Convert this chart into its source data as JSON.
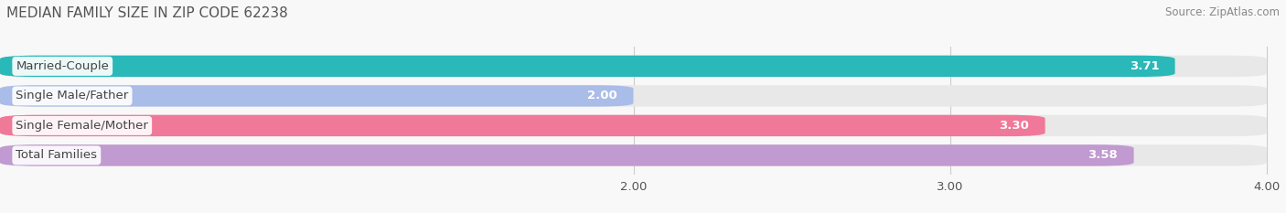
{
  "title": "MEDIAN FAMILY SIZE IN ZIP CODE 62238",
  "source": "Source: ZipAtlas.com",
  "categories": [
    "Married-Couple",
    "Single Male/Father",
    "Single Female/Mother",
    "Total Families"
  ],
  "values": [
    3.71,
    2.0,
    3.3,
    3.58
  ],
  "bar_colors": [
    "#2ab8b8",
    "#aabce8",
    "#f07898",
    "#c09ad0"
  ],
  "bar_bg_color": "#e8e8e8",
  "xmin": 0.0,
  "xmax": 4.0,
  "xticks": [
    2.0,
    3.0,
    4.0
  ],
  "xtick_labels": [
    "2.00",
    "3.00",
    "4.00"
  ],
  "bar_height": 0.72,
  "label_fontsize": 9.5,
  "value_fontsize": 9.5,
  "title_fontsize": 11,
  "source_fontsize": 8.5,
  "bg_color": "#f8f8f8",
  "grid_color": "#cccccc",
  "text_color": "#555555",
  "source_color": "#888888"
}
